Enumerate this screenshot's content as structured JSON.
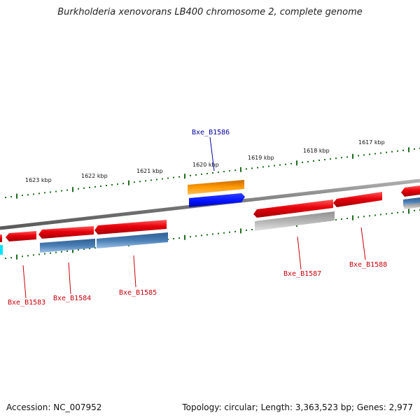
{
  "title": "Burkholderia xenovorans LB400 chromosome 2, complete genome",
  "accession": "Accession: NC_007952",
  "topology": "Topology: circular; Length: 3,363,523 bp; Genes: 2,977",
  "colors": {
    "forward_gene": "#e8000a",
    "reverse_gene": "#e8000a",
    "cds_blue": "#4a7fb5",
    "cds_gray": "#b4b4b4",
    "highlight_orange": "#ff9a00",
    "highlight_blue": "#0010ff",
    "tick_green": "#1a6e1a",
    "backbone": "#8a8a8a",
    "label_red": "#c8000a",
    "label_blue": "#0000a0",
    "cyan_partial": "#00e5ff"
  },
  "kbp_ticks": [
    "1623 kbp",
    "1622 kbp",
    "1621 kbp",
    "1620 kbp",
    "1619 kbp",
    "1618 kbp",
    "1617 kbp"
  ],
  "gene_labels": {
    "b1583": "Bxe_B1583",
    "b1584": "Bxe_B1584",
    "b1585": "Bxe_B1585",
    "b1586": "Bxe_B1586",
    "b1587": "Bxe_B1587",
    "b1588": "Bxe_B1588"
  }
}
